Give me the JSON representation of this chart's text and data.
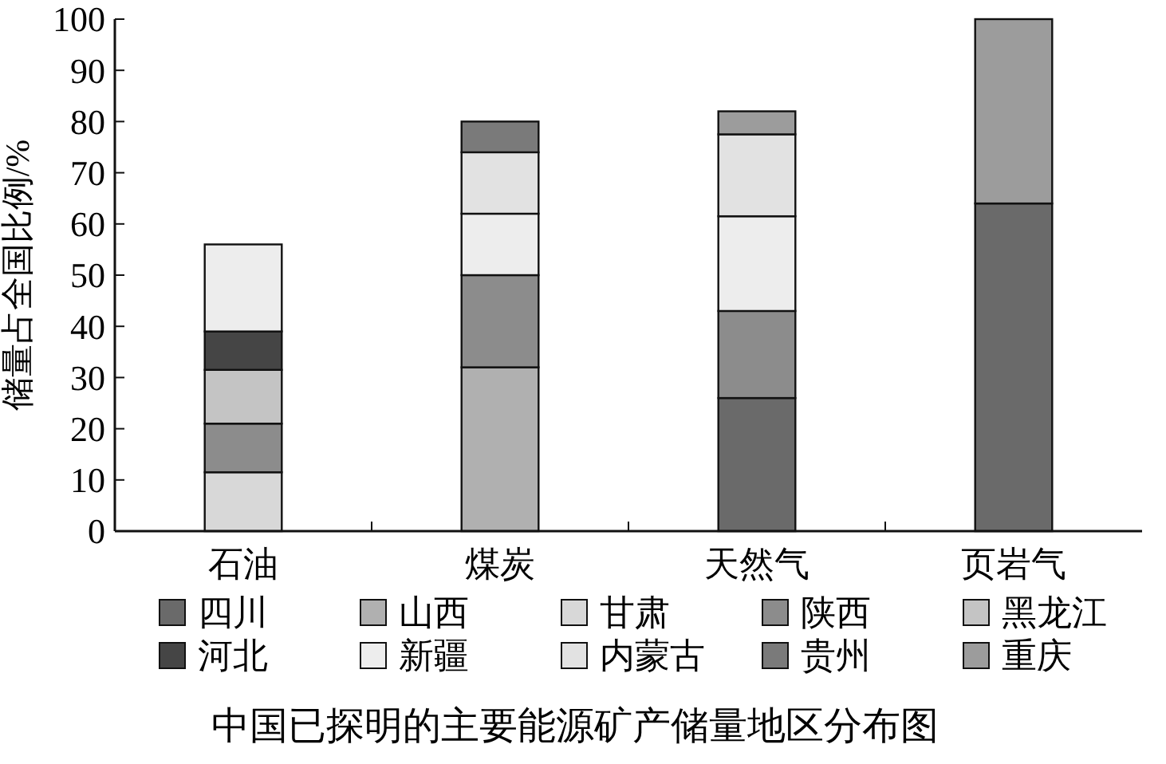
{
  "chart_data": {
    "type": "bar",
    "stacked": true,
    "title": "中国已探明的主要能源矿产储量地区分布图",
    "ylabel": "储量占全国比例/%",
    "categories": [
      "石油",
      "煤炭",
      "天然气",
      "页岩气"
    ],
    "series": [
      {
        "name": "四川",
        "color": "#6a6a6a",
        "values": [
          null,
          null,
          26,
          64
        ]
      },
      {
        "name": "山西",
        "color": "#b0b0b0",
        "values": [
          null,
          32,
          null,
          null
        ]
      },
      {
        "name": "甘肃",
        "color": "#d8d8d8",
        "values": [
          11.5,
          null,
          null,
          null
        ]
      },
      {
        "name": "陕西",
        "color": "#8c8c8c",
        "values": [
          9.5,
          18,
          17,
          null
        ]
      },
      {
        "name": "黑龙江",
        "color": "#c4c4c4",
        "values": [
          10.5,
          null,
          null,
          null
        ]
      },
      {
        "name": "河北",
        "color": "#454545",
        "values": [
          7.5,
          null,
          null,
          null
        ]
      },
      {
        "name": "新疆",
        "color": "#ededed",
        "values": [
          17,
          12,
          18.5,
          null
        ]
      },
      {
        "name": "内蒙古",
        "color": "#e2e2e2",
        "values": [
          null,
          12,
          16,
          null
        ]
      },
      {
        "name": "贵州",
        "color": "#7a7a7a",
        "values": [
          null,
          6,
          null,
          null
        ]
      },
      {
        "name": "重庆",
        "color": "#9c9c9c",
        "values": [
          null,
          null,
          4.5,
          36
        ]
      }
    ],
    "ylim": [
      0,
      100
    ],
    "yticks": [
      0,
      10,
      20,
      30,
      40,
      50,
      60,
      70,
      80,
      90,
      100
    ],
    "legend": "bottom",
    "grid": false
  }
}
